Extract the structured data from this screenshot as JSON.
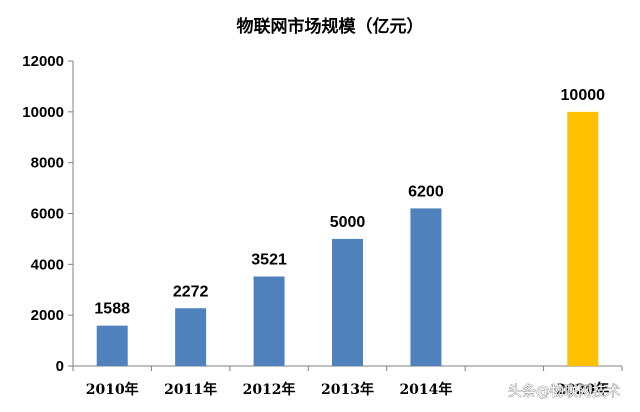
{
  "chart_data": {
    "type": "bar",
    "title": "物联网市场规模（亿元）",
    "categories": [
      "2010年",
      "2011年",
      "2012年",
      "2013年",
      "2014年",
      "",
      "2020年"
    ],
    "values": [
      1588,
      2272,
      3521,
      5000,
      6200,
      null,
      10000
    ],
    "data_labels": [
      "1588",
      "2272",
      "3521",
      "5000",
      "6200",
      "",
      "10000"
    ],
    "ylim": [
      0,
      12000
    ],
    "yticks": [
      0,
      2000,
      4000,
      6000,
      8000,
      10000,
      12000
    ],
    "ytick_labels": [
      "0",
      "2000",
      "4000",
      "6000",
      "8000",
      "10000",
      "12000"
    ],
    "grid": false,
    "legend": "none",
    "colors": {
      "bar": "#4F81BD",
      "highlight_bar": "#FFC000",
      "axis": "#808080",
      "text": "#000000"
    },
    "highlight_index": 6
  },
  "watermark": "头条@物联网技术"
}
